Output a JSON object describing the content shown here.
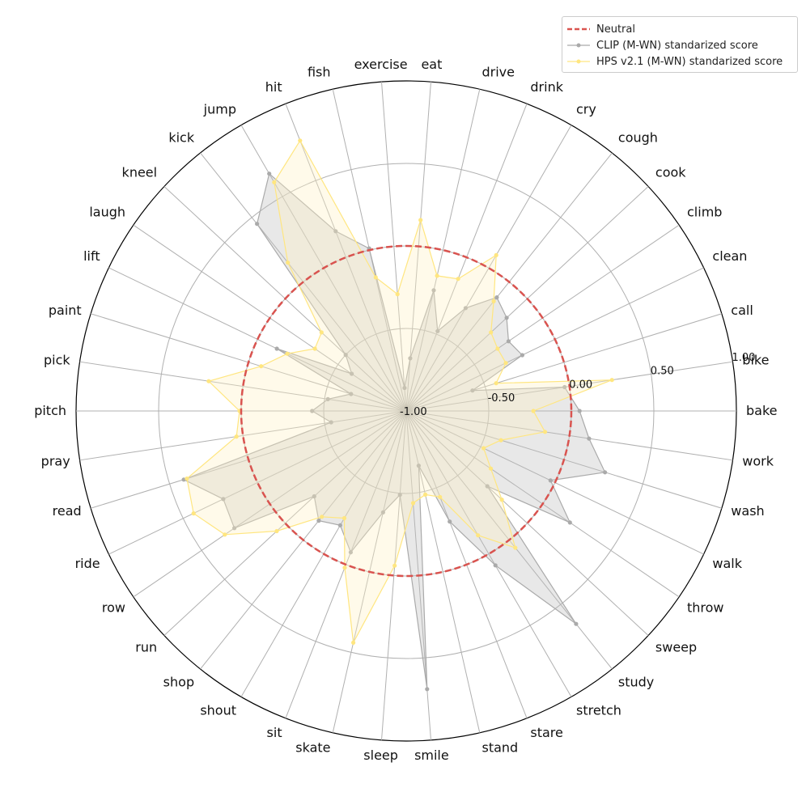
{
  "chart_data": {
    "type": "radar",
    "categories": [
      "bake",
      "bike",
      "call",
      "clean",
      "climb",
      "cook",
      "cough",
      "cry",
      "drink",
      "drive",
      "eat",
      "exercise",
      "fish",
      "hit",
      "jump",
      "kick",
      "kneel",
      "laugh",
      "lift",
      "paint",
      "pick",
      "pitch",
      "pray",
      "read",
      "ride",
      "row",
      "run",
      "shop",
      "shout",
      "sit",
      "skate",
      "sleep",
      "smile",
      "stand",
      "stare",
      "stretch",
      "study",
      "sweep",
      "throw",
      "walk",
      "wash",
      "work"
    ],
    "r_ticks": [
      "-1.00",
      "-0.50",
      "0.00",
      "0.50",
      "1.00"
    ],
    "r_range": [
      -1.0,
      1.0
    ],
    "grid": true,
    "legend_position": "top-right",
    "neutral": {
      "name": "Neutral",
      "value": 0.0,
      "color": "#d9534f"
    },
    "series": [
      {
        "name": "CLIP (M-WN) standarized score",
        "color": "#aaaaaa",
        "fill": "#bdbdbd",
        "values": [
          0.05,
          -0.03,
          -0.58,
          -0.22,
          -0.25,
          -0.17,
          -0.12,
          -0.28,
          -0.48,
          -0.25,
          -0.68,
          -0.86,
          0.01,
          0.17,
          0.66,
          0.45,
          -0.5,
          -0.6,
          -0.13,
          -0.65,
          -0.52,
          -0.43,
          -0.54,
          0.41,
          0.23,
          0.26,
          -0.24,
          -0.15,
          -0.2,
          -0.08,
          -0.37,
          -0.49,
          0.69,
          -0.66,
          -0.28,
          0.08,
          0.65,
          -0.33,
          0.2,
          -0.03,
          0.26,
          0.12
        ]
      },
      {
        "name": "HPS v2.1 (M-WN) standarized score",
        "color": "#ffe680",
        "fill": "#fff2c4",
        "values": [
          -0.23,
          0.26,
          -0.43,
          -0.33,
          -0.33,
          -0.3,
          -0.15,
          0.09,
          -0.14,
          -0.16,
          0.16,
          -0.29,
          -0.17,
          0.76,
          0.6,
          0.15,
          -0.3,
          -0.33,
          -0.2,
          -0.08,
          0.21,
          0.01,
          0.04,
          0.39,
          0.43,
          0.33,
          0.07,
          -0.18,
          -0.25,
          0.02,
          0.44,
          -0.06,
          -0.44,
          -0.48,
          -0.44,
          -0.13,
          0.06,
          -0.21,
          -0.38,
          -0.48,
          -0.4,
          -0.15
        ]
      }
    ]
  },
  "legend": {
    "neutral": "Neutral",
    "clip": "CLIP (M-WN) standarized score",
    "hps": "HPS v2.1 (M-WN) standarized score"
  }
}
